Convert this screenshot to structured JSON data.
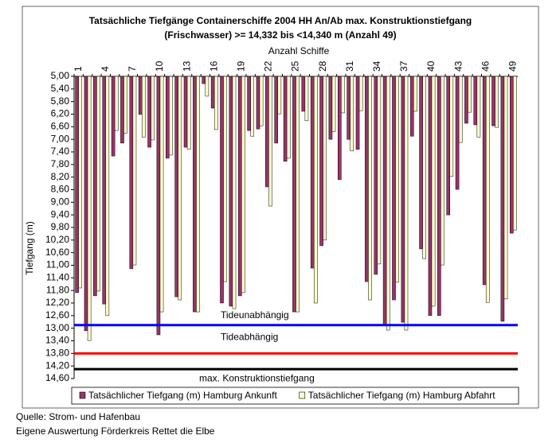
{
  "chart_data": {
    "type": "bar",
    "title": "Tatsächliche Tiefgänge Containerschiffe 2004 HH An/Ab max. Konstruktionstiefgang",
    "subtitle": "(Frischwasser) >= 14,332 bis <14,340 m (Anzahl 49)",
    "x_label": "Anzahl Schiffe",
    "y_label": "Tiefgang (m)",
    "categories": [
      "1",
      null,
      null,
      "4",
      null,
      null,
      "7",
      null,
      null,
      "10",
      null,
      null,
      "13",
      null,
      null,
      "16",
      null,
      null,
      "19",
      null,
      null,
      "22",
      null,
      null,
      "25",
      null,
      null,
      "28",
      null,
      null,
      "31",
      null,
      null,
      "34",
      null,
      null,
      "37",
      null,
      null,
      "40",
      null,
      null,
      "43",
      null,
      null,
      "46",
      null,
      null,
      "49"
    ],
    "series": [
      {
        "name": "Tatsächlicher Tiefgang (m) Hamburg Ankunft",
        "color": "#993366",
        "values": [
          11.87,
          13.08,
          11.97,
          12.23,
          7.53,
          7.12,
          11.11,
          6.21,
          7.25,
          13.21,
          7.6,
          12.0,
          7.25,
          12.48,
          5.23,
          6.01,
          12.2,
          12.3,
          11.97,
          6.72,
          6.67,
          8.51,
          7.12,
          7.7,
          12.48,
          6.11,
          11.09,
          10.38,
          7.0,
          8.28,
          7.0,
          7.32,
          11.52,
          11.29,
          12.88,
          12.1,
          12.81,
          6.9,
          10.48,
          12.6,
          12.6,
          9.4,
          8.59,
          6.49,
          6.54,
          11.62,
          6.57,
          12.78,
          9.98
        ]
      },
      {
        "name": "Tatsächlicher Tiefgang (m) Hamburg Abfahrt",
        "color": "#ffffcc",
        "values": [
          11.72,
          13.39,
          11.82,
          12.6,
          6.72,
          6.8,
          10.99,
          6.93,
          7.02,
          12.48,
          7.5,
          12.1,
          7.32,
          12.48,
          5.63,
          6.69,
          11.52,
          12.38,
          11.87,
          6.9,
          6.57,
          9.12,
          6.19,
          7.6,
          12.48,
          6.41,
          12.2,
          10.2,
          6.75,
          6.16,
          7.37,
          6.09,
          12.1,
          10.96,
          13.06,
          11.54,
          13.06,
          6.11,
          10.79,
          12.3,
          10.99,
          8.18,
          7.1,
          6.14,
          6.93,
          12.18,
          6.62,
          12.07,
          9.88
        ]
      }
    ],
    "reference_lines": [
      {
        "label": "Tideunabhängig",
        "value": 12.9,
        "color": "#0000ff"
      },
      {
        "label": "Tideabhängig",
        "value": 13.8,
        "color": "#ff0000"
      },
      {
        "label": "max. Konstruktionstiefgang",
        "value": 14.3,
        "color": "#000000"
      }
    ],
    "ylim": [
      5,
      14.6
    ],
    "y_inverted": true,
    "yticks": [
      {
        "value": 5,
        "label": "5,00"
      },
      {
        "value": 5.4,
        "label": "5,40"
      },
      {
        "value": 5.8,
        "label": "5,80"
      },
      {
        "value": 6.2,
        "label": "6,20"
      },
      {
        "value": 6.6,
        "label": "6,60"
      },
      {
        "value": 7,
        "label": "7,00"
      },
      {
        "value": 7.4,
        "label": "7,40"
      },
      {
        "value": 7.8,
        "label": "7,80"
      },
      {
        "value": 8.2,
        "label": "8,20"
      },
      {
        "value": 8.6,
        "label": "8,60"
      },
      {
        "value": 9,
        "label": "9,00"
      },
      {
        "value": 9.4,
        "label": "9,40"
      },
      {
        "value": 9.8,
        "label": "9,80"
      },
      {
        "value": 10.2,
        "label": "10,20"
      },
      {
        "value": 10.6,
        "label": "10,60"
      },
      {
        "value": 11,
        "label": "11,00"
      },
      {
        "value": 11.4,
        "label": "11,40"
      },
      {
        "value": 11.8,
        "label": "11,80"
      },
      {
        "value": 12.2,
        "label": "12,20"
      },
      {
        "value": 12.6,
        "label": "12,60"
      },
      {
        "value": 13,
        "label": "13,00"
      },
      {
        "value": 13.4,
        "label": "13,40"
      },
      {
        "value": 13.8,
        "label": "13,80"
      },
      {
        "value": 14.2,
        "label": "14,20"
      },
      {
        "value": 14.6,
        "label": "14,60"
      }
    ],
    "legend": "bottom",
    "source": [
      "Quelle: Strom- und Hafenbau",
      "Eigene Auswertung Förderkreis Rettet die Elbe"
    ]
  }
}
